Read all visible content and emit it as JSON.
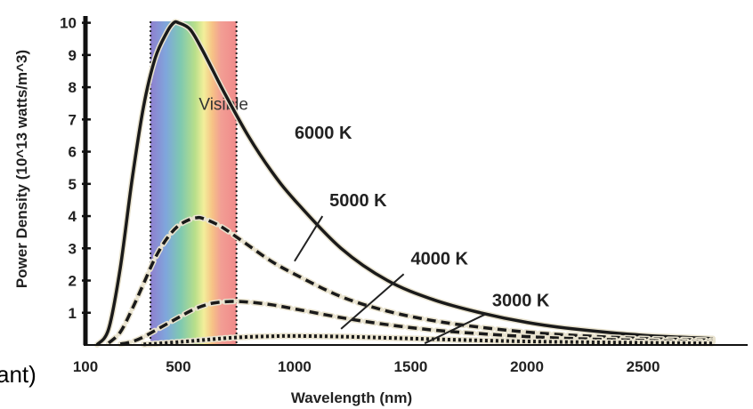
{
  "chart_data": {
    "type": "line",
    "title": "",
    "xlabel": "Wavelength (nm)",
    "ylabel": "Power Density (10^13 watts/m^3)",
    "xlim": [
      100,
      2950
    ],
    "ylim": [
      0,
      10.1
    ],
    "x_ticks": [
      "100",
      "500",
      "1000",
      "1500",
      "2000",
      "2500"
    ],
    "x_tick_values": [
      100,
      500,
      1000,
      1500,
      2000,
      2500
    ],
    "y_ticks": [
      "1",
      "2",
      "3",
      "4",
      "5",
      "6",
      "7",
      "8",
      "9",
      "10"
    ],
    "y_tick_values": [
      1,
      2,
      3,
      4,
      5,
      6,
      7,
      8,
      9,
      10
    ],
    "visible_band": {
      "label": "Visible",
      "start": 380,
      "end": 750
    },
    "series": [
      {
        "name": "6000 K",
        "style": "solid",
        "temperature": 6000,
        "x": [
          150,
          200,
          250,
          300,
          350,
          400,
          450,
          480,
          500,
          550,
          600,
          650,
          700,
          800,
          900,
          1000,
          1200,
          1400,
          1600,
          1800,
          2000,
          2200,
          2500,
          2800
        ],
        "y": [
          0.01,
          0.5,
          2.4,
          5.1,
          7.4,
          8.9,
          9.7,
          10.0,
          10.0,
          9.8,
          9.2,
          8.5,
          7.8,
          6.5,
          5.4,
          4.5,
          3.0,
          2.0,
          1.4,
          1.0,
          0.7,
          0.5,
          0.3,
          0.2
        ]
      },
      {
        "name": "5000 K",
        "style": "dashed",
        "temperature": 5000,
        "x": [
          200,
          250,
          300,
          350,
          400,
          450,
          500,
          550,
          580,
          600,
          650,
          700,
          800,
          900,
          1000,
          1200,
          1400,
          1600,
          1800,
          2000,
          2200,
          2500,
          2800
        ],
        "y": [
          0.06,
          0.4,
          1.1,
          1.9,
          2.7,
          3.3,
          3.7,
          3.9,
          3.95,
          3.94,
          3.8,
          3.6,
          3.1,
          2.6,
          2.2,
          1.5,
          1.05,
          0.75,
          0.55,
          0.4,
          0.3,
          0.2,
          0.15
        ]
      },
      {
        "name": "4000 K",
        "style": "dashed",
        "temperature": 4000,
        "x": [
          250,
          300,
          350,
          400,
          450,
          500,
          550,
          600,
          650,
          720,
          800,
          900,
          1000,
          1200,
          1400,
          1600,
          1800,
          2000,
          2200,
          2500,
          2800
        ],
        "y": [
          0.03,
          0.1,
          0.25,
          0.45,
          0.65,
          0.85,
          1.05,
          1.2,
          1.3,
          1.35,
          1.33,
          1.25,
          1.12,
          0.85,
          0.63,
          0.46,
          0.35,
          0.26,
          0.2,
          0.14,
          0.1
        ]
      },
      {
        "name": "3000 K",
        "style": "dotted",
        "temperature": 3000,
        "x": [
          350,
          400,
          500,
          600,
          700,
          800,
          900,
          1000,
          1200,
          1400,
          1600,
          1800,
          2000,
          2200,
          2500,
          2800
        ],
        "y": [
          0.02,
          0.04,
          0.09,
          0.15,
          0.21,
          0.25,
          0.27,
          0.28,
          0.26,
          0.22,
          0.18,
          0.14,
          0.11,
          0.09,
          0.07,
          0.05
        ]
      }
    ],
    "annotations": [
      {
        "text": "6000 K",
        "series": "6000 K"
      },
      {
        "text": "5000 K",
        "series": "5000 K"
      },
      {
        "text": "4000 K",
        "series": "4000 K"
      },
      {
        "text": "3000 K",
        "series": "3000 K"
      }
    ],
    "grid": false,
    "legend": "none"
  },
  "page": {
    "left_fragment": "ant)"
  }
}
